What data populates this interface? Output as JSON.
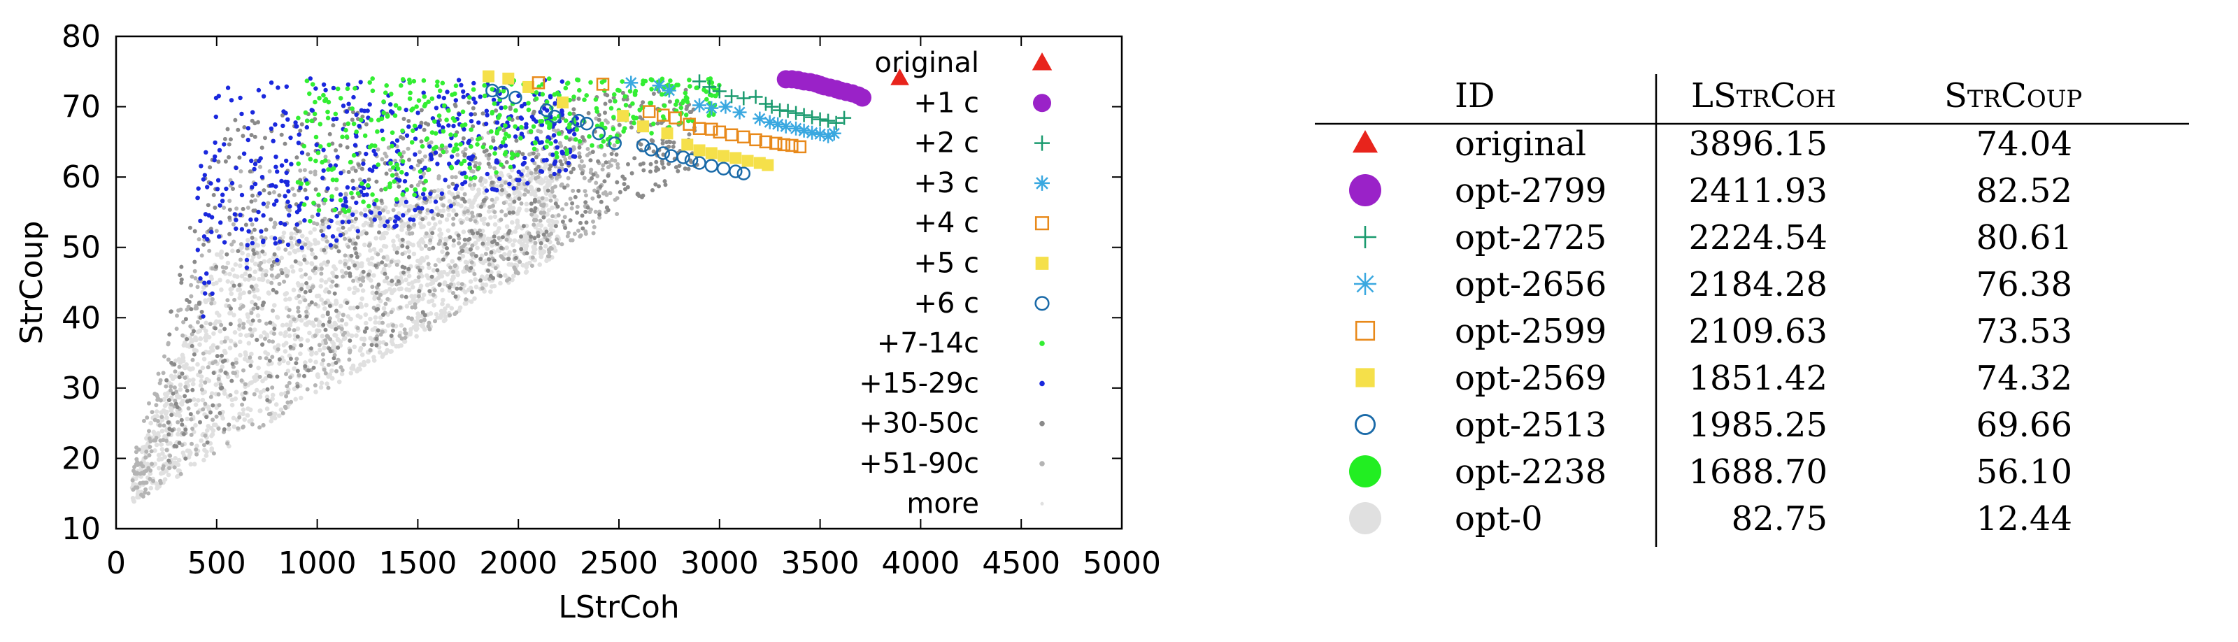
{
  "chart_data": {
    "type": "scatter",
    "xlabel": "LStrCoh",
    "ylabel": "StrCoup",
    "xlim": [
      0,
      5000
    ],
    "ylim": [
      10,
      80
    ],
    "x_ticks": [
      0,
      500,
      1000,
      1500,
      2000,
      2500,
      3000,
      3500,
      4000,
      4500,
      5000
    ],
    "y_ticks": [
      10,
      20,
      30,
      40,
      50,
      60,
      70,
      80
    ],
    "legend_position": "top-right",
    "series": [
      {
        "name": "original",
        "marker": "triangle",
        "color": "#e8241c",
        "points": [
          [
            3896.15,
            74.04
          ]
        ]
      },
      {
        "name": "+1 c",
        "marker": "filled-circle",
        "color": "#9a22c8",
        "points": [
          [
            3330,
            73.9
          ],
          [
            3360,
            73.9
          ],
          [
            3390,
            73.8
          ],
          [
            3420,
            73.6
          ],
          [
            3450,
            73.5
          ],
          [
            3480,
            73.3
          ],
          [
            3500,
            73.1
          ],
          [
            3520,
            72.9
          ],
          [
            3550,
            72.7
          ],
          [
            3580,
            72.5
          ],
          [
            3600,
            72.3
          ],
          [
            3630,
            72.1
          ],
          [
            3660,
            71.9
          ],
          [
            3690,
            71.6
          ],
          [
            3710,
            71.3
          ]
        ]
      },
      {
        "name": "+2 c",
        "marker": "plus",
        "color": "#1a9a6e",
        "points": [
          [
            2900,
            73.6
          ],
          [
            2950,
            72.8
          ],
          [
            3000,
            72.2
          ],
          [
            3060,
            71.5
          ],
          [
            3120,
            71.2
          ],
          [
            3180,
            71.4
          ],
          [
            3230,
            70.4
          ],
          [
            3260,
            70.0
          ],
          [
            3300,
            69.5
          ],
          [
            3340,
            69.4
          ],
          [
            3380,
            69.1
          ],
          [
            3420,
            68.8
          ],
          [
            3460,
            68.5
          ],
          [
            3500,
            68.2
          ],
          [
            3540,
            68.0
          ],
          [
            3580,
            67.7
          ],
          [
            3620,
            68.4
          ]
        ]
      },
      {
        "name": "+3 c",
        "marker": "asterisk",
        "color": "#3aa8e0",
        "points": [
          [
            2560,
            73.4
          ],
          [
            2700,
            73.0
          ],
          [
            2750,
            72.3
          ],
          [
            2900,
            70.2
          ],
          [
            2960,
            69.8
          ],
          [
            3030,
            70.0
          ],
          [
            3100,
            69.2
          ],
          [
            3200,
            68.3
          ],
          [
            3250,
            67.8
          ],
          [
            3290,
            67.5
          ],
          [
            3330,
            67.2
          ],
          [
            3380,
            66.9
          ],
          [
            3420,
            66.6
          ],
          [
            3460,
            66.3
          ],
          [
            3500,
            66.1
          ],
          [
            3540,
            65.8
          ],
          [
            3570,
            66.2
          ]
        ]
      },
      {
        "name": "+4 c",
        "marker": "open-square",
        "color": "#e8891a",
        "points": [
          [
            2100,
            73.4
          ],
          [
            2420,
            73.2
          ],
          [
            2650,
            69.3
          ],
          [
            2720,
            68.8
          ],
          [
            2780,
            68.4
          ],
          [
            2850,
            67.5
          ],
          [
            2900,
            66.9
          ],
          [
            2960,
            66.8
          ],
          [
            3000,
            66.4
          ],
          [
            3060,
            66.0
          ],
          [
            3120,
            65.7
          ],
          [
            3180,
            65.3
          ],
          [
            3230,
            65.0
          ],
          [
            3280,
            64.8
          ],
          [
            3320,
            64.6
          ],
          [
            3360,
            64.5
          ],
          [
            3400,
            64.3
          ]
        ]
      },
      {
        "name": "+5 c",
        "marker": "filled-square",
        "color": "#f5e04a",
        "points": [
          [
            1851.42,
            74.32
          ],
          [
            1950,
            74.0
          ],
          [
            2050,
            72.8
          ],
          [
            2220,
            70.6
          ],
          [
            2520,
            68.7
          ],
          [
            2620,
            67.2
          ],
          [
            2740,
            66.2
          ],
          [
            2840,
            64.6
          ],
          [
            2900,
            63.8
          ],
          [
            2960,
            63.4
          ],
          [
            3020,
            63.0
          ],
          [
            3080,
            62.7
          ],
          [
            3140,
            62.3
          ],
          [
            3200,
            62.0
          ],
          [
            3240,
            61.7
          ]
        ]
      },
      {
        "name": "+6 c",
        "marker": "open-circle",
        "color": "#1a6aa8",
        "points": [
          [
            1870,
            72.3
          ],
          [
            1920,
            72.0
          ],
          [
            1985,
            71.3
          ],
          [
            2140,
            69.5
          ],
          [
            2180,
            68.6
          ],
          [
            2300,
            68.0
          ],
          [
            2340,
            67.6
          ],
          [
            2400,
            66.2
          ],
          [
            2480,
            64.8
          ],
          [
            2620,
            64.5
          ],
          [
            2660,
            63.9
          ],
          [
            2720,
            63.4
          ],
          [
            2760,
            63.0
          ],
          [
            2820,
            62.8
          ],
          [
            2860,
            62.4
          ],
          [
            2900,
            62.0
          ],
          [
            2960,
            61.6
          ],
          [
            3020,
            61.2
          ],
          [
            3080,
            60.8
          ],
          [
            3120,
            60.5
          ]
        ]
      }
    ],
    "density_series": [
      {
        "name": "+7-14c",
        "marker": "dot",
        "color": "#33ee33"
      },
      {
        "name": "+15-29c",
        "marker": "dot",
        "color": "#1a28dd"
      },
      {
        "name": "+30-50c",
        "marker": "dot",
        "color": "#8a8a8a"
      },
      {
        "name": "+51-90c",
        "marker": "dot",
        "color": "#b4b4b4"
      },
      {
        "name": "more",
        "marker": "dot",
        "color": "#e0e0e0"
      }
    ]
  },
  "table": {
    "headers": [
      "ID",
      "LStrCoh",
      "StrCoup"
    ],
    "rows": [
      {
        "marker": "triangle",
        "color": "#e8241c",
        "id": "original",
        "lstrcoh": "3896.15",
        "strcoup": "74.04"
      },
      {
        "marker": "filled-circle",
        "color": "#9a22c8",
        "id": "opt-2799",
        "lstrcoh": "2411.93",
        "strcoup": "82.52"
      },
      {
        "marker": "plus",
        "color": "#1a9a6e",
        "id": "opt-2725",
        "lstrcoh": "2224.54",
        "strcoup": "80.61"
      },
      {
        "marker": "asterisk",
        "color": "#3aa8e0",
        "id": "opt-2656",
        "lstrcoh": "2184.28",
        "strcoup": "76.38"
      },
      {
        "marker": "open-square",
        "color": "#e8891a",
        "id": "opt-2599",
        "lstrcoh": "2109.63",
        "strcoup": "73.53"
      },
      {
        "marker": "filled-square",
        "color": "#f5e04a",
        "id": "opt-2569",
        "lstrcoh": "1851.42",
        "strcoup": "74.32"
      },
      {
        "marker": "open-circle",
        "color": "#1a6aa8",
        "id": "opt-2513",
        "lstrcoh": "1985.25",
        "strcoup": "69.66"
      },
      {
        "marker": "filled-circle",
        "color": "#22ee22",
        "id": "opt-2238",
        "lstrcoh": "1688.70",
        "strcoup": "56.10"
      },
      {
        "marker": "filled-circle",
        "color": "#e0e0e0",
        "id": "opt-0",
        "lstrcoh": "82.75",
        "strcoup": "12.44"
      }
    ]
  }
}
